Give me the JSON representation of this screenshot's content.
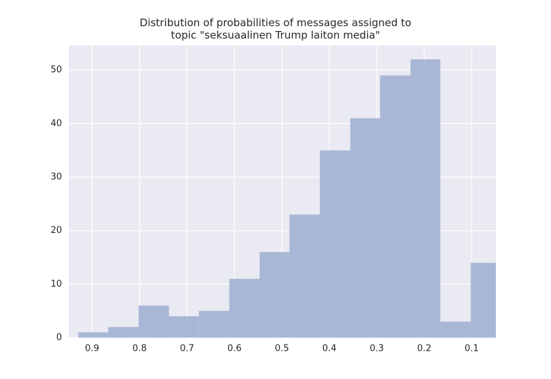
{
  "chart_data": {
    "type": "histogram",
    "title": "Distribution of probabilities of messages assigned to\ntopic \"seksuaalinen Trump laiton media\"",
    "bins": [
      0.038,
      0.102,
      0.166,
      0.229,
      0.293,
      0.356,
      0.42,
      0.484,
      0.547,
      0.611,
      0.675,
      0.738,
      0.802,
      0.866,
      0.929
    ],
    "values": [
      14,
      3,
      52,
      49,
      41,
      35,
      23,
      16,
      11,
      5,
      4,
      6,
      2,
      1
    ],
    "color": "#a9b7d6",
    "xlim": [
      0.949,
      0.049
    ],
    "xticks": [
      0.9,
      0.8,
      0.7,
      0.6,
      0.5,
      0.4,
      0.3,
      0.2,
      0.1
    ],
    "ylim": [
      0,
      54.6
    ],
    "yticks": [
      0,
      10,
      20,
      30,
      40,
      50
    ],
    "grid": true
  }
}
